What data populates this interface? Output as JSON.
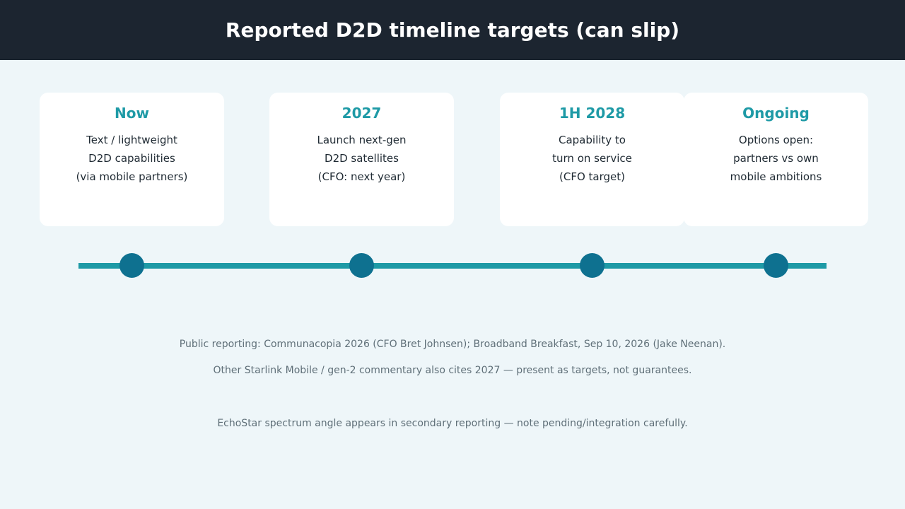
{
  "header": {
    "title": "Reported D2D timeline targets (can slip)"
  },
  "milestones": [
    {
      "title": "Now",
      "lines": [
        "Text / lightweight",
        "D2D capabilities",
        "(via mobile partners)"
      ]
    },
    {
      "title": "2027",
      "lines": [
        "Launch next-gen",
        "D2D satellites",
        "(CFO: next year)"
      ]
    },
    {
      "title": "1H 2028",
      "lines": [
        "Capability to",
        "turn on service",
        "(CFO target)"
      ]
    },
    {
      "title": "Ongoing",
      "lines": [
        "Options open:",
        "partners vs own",
        "mobile ambitions"
      ]
    }
  ],
  "notes": [
    "Public reporting: Communacopia 2026 (CFO Bret Johnsen); Broadband Breakfast, Sep 10, 2026 (Jake Neenan).",
    "Other Starlink Mobile / gen-2 commentary also cites 2027 — present as targets, not guarantees.",
    "EchoStar spectrum angle appears in secondary reporting — note pending/integration carefully."
  ],
  "colors": {
    "header_bg": "#1c2530",
    "accent": "#1e9aa6",
    "dot": "#0e7190",
    "background": "#eef6f9"
  }
}
